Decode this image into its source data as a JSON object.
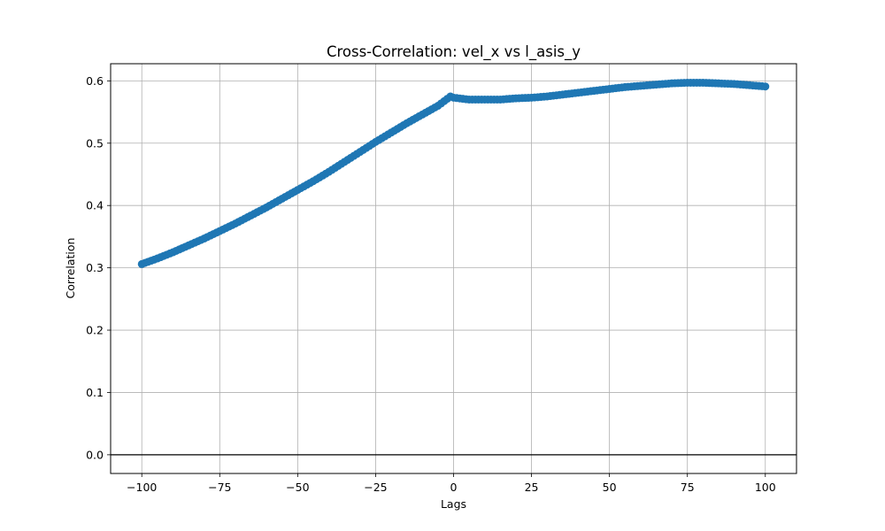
{
  "chart_data": {
    "type": "line",
    "title": "Cross-Correlation: vel_x vs l_asis_y",
    "xlabel": "Lags",
    "ylabel": "Correlation",
    "xlim": [
      -110,
      110
    ],
    "ylim": [
      -0.03,
      0.6275
    ],
    "xticks": [
      -100,
      -75,
      -50,
      -25,
      0,
      25,
      50,
      75,
      100
    ],
    "xtick_labels": [
      "−100",
      "−75",
      "−50",
      "−25",
      "0",
      "25",
      "50",
      "75",
      "100"
    ],
    "yticks": [
      0.0,
      0.1,
      0.2,
      0.3,
      0.4,
      0.5,
      0.6
    ],
    "ytick_labels": [
      "0.0",
      "0.1",
      "0.2",
      "0.3",
      "0.4",
      "0.5",
      "0.6"
    ],
    "grid": true,
    "reference_line_y": 0,
    "colors": {
      "series": "#1f77b4",
      "grid": "#b0b0b0",
      "axes": "#000000"
    },
    "series": [
      {
        "marker": "circle",
        "x": [
          -100,
          -95,
          -90,
          -85,
          -80,
          -75,
          -70,
          -65,
          -60,
          -55,
          -50,
          -45,
          -40,
          -35,
          -30,
          -25,
          -20,
          -15,
          -10,
          -5,
          -1,
          0,
          5,
          10,
          15,
          20,
          25,
          30,
          35,
          40,
          45,
          50,
          55,
          60,
          65,
          70,
          75,
          80,
          85,
          90,
          95,
          100
        ],
        "values": [
          0.306,
          0.315,
          0.325,
          0.336,
          0.347,
          0.359,
          0.371,
          0.384,
          0.397,
          0.411,
          0.425,
          0.439,
          0.454,
          0.47,
          0.486,
          0.502,
          0.517,
          0.532,
          0.546,
          0.56,
          0.575,
          0.573,
          0.57,
          0.57,
          0.57,
          0.572,
          0.573,
          0.575,
          0.578,
          0.581,
          0.584,
          0.587,
          0.59,
          0.592,
          0.594,
          0.596,
          0.597,
          0.597,
          0.596,
          0.595,
          0.593,
          0.591
        ]
      }
    ]
  }
}
